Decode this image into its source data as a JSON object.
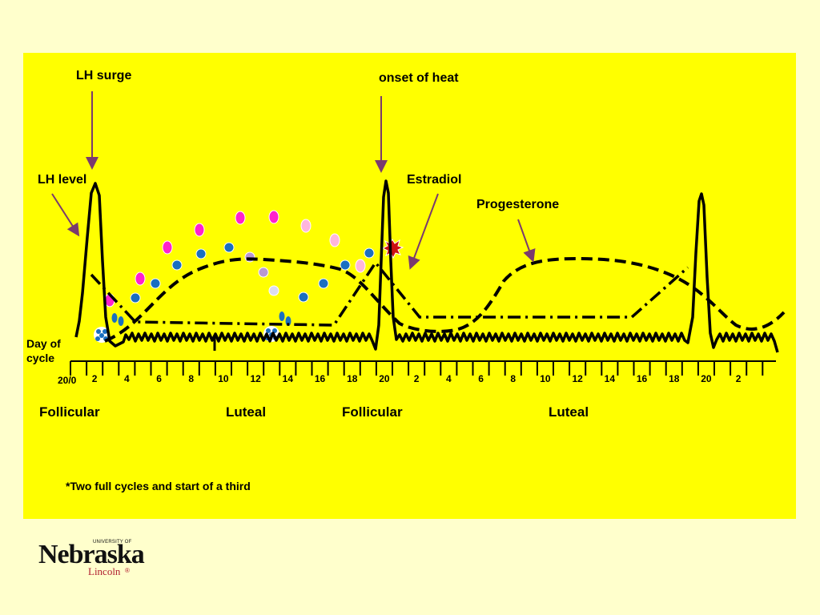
{
  "labels": {
    "lh_surge": "LH surge",
    "onset_of_heat": "onset of heat",
    "lh_level": "LH level",
    "estradiol": "Estradiol",
    "progesterone": "Progesterone",
    "day_of_cycle": "Day of cycle"
  },
  "axis": {
    "start_label": "20/0",
    "tick_labels": [
      "2",
      "4",
      "6",
      "8",
      "10",
      "12",
      "14",
      "16",
      "18",
      "20",
      "2",
      "4",
      "6",
      "8",
      "10",
      "12",
      "14",
      "16",
      "18",
      "20",
      "2"
    ]
  },
  "phases": [
    "Follicular",
    "Luteal",
    "Follicular",
    "Luteal"
  ],
  "footnote": "*Two full cycles and start of a third",
  "logo": {
    "university_of": "UNIVERSITY OF",
    "name": "Nebraska",
    "city": "Lincoln",
    "mark": "®"
  },
  "colors": {
    "background": "#ffffcc",
    "panel": "#ffff00",
    "arrow": "#7a3a6e",
    "follicle_magenta": "#ff22cc",
    "follicle_pink": "#ffb6dc",
    "follicle_blue": "#1a6fc0",
    "corpus_lavender": "#b898d0",
    "heat_star": "#cc1111"
  },
  "icons": [
    "heat-star-icon",
    "ovulation-cluster-icon"
  ]
}
